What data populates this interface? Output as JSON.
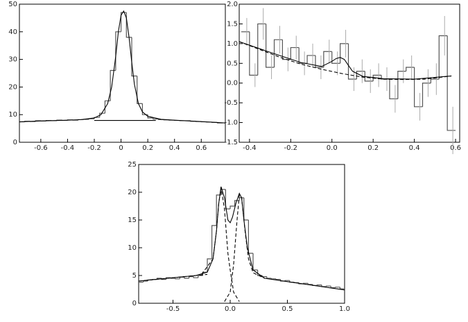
{
  "chart_data": [
    {
      "type": "histogram",
      "color": "#555555",
      "xlim": [
        -0.76,
        0.78
      ],
      "ylim": [
        0,
        50
      ],
      "xticks": [
        -0.6,
        -0.4,
        -0.2,
        0,
        0.2,
        0.4,
        0.6
      ],
      "yticks": [
        0,
        10,
        20,
        30,
        40,
        50
      ],
      "bins": [
        -0.76,
        -0.72,
        -0.68,
        -0.64,
        -0.6,
        -0.56,
        -0.52,
        -0.48,
        -0.44,
        -0.4,
        -0.36,
        -0.32,
        -0.28,
        -0.24,
        -0.2,
        -0.16,
        -0.12,
        -0.08,
        -0.04,
        0,
        0.04,
        0.08,
        0.12,
        0.16,
        0.2,
        0.24,
        0.28,
        0.32,
        0.36,
        0.4,
        0.44,
        0.48,
        0.52,
        0.56,
        0.6,
        0.64,
        0.68,
        0.72,
        0.76
      ],
      "values": [
        7.4,
        7.6,
        7.5,
        7.8,
        7.7,
        7.9,
        7.8,
        8.0,
        7.9,
        8.1,
        8.0,
        8.2,
        8.3,
        8.5,
        9.0,
        10.5,
        15,
        26,
        40,
        47,
        38,
        24,
        14,
        10,
        8.8,
        8.4,
        8.2,
        8.1,
        8.0,
        7.9,
        7.8,
        7.8,
        7.6,
        7.5,
        7.4,
        7.3,
        7.2,
        7.0
      ],
      "curves": [
        {
          "color": "#000000",
          "dash": false,
          "x": [
            -0.76,
            -0.6,
            -0.4,
            -0.3,
            -0.2,
            -0.15,
            -0.1,
            -0.07,
            -0.04,
            -0.02,
            0,
            0.02,
            0.04,
            0.06,
            0.08,
            0.1,
            0.13,
            0.16,
            0.2,
            0.3,
            0.4,
            0.6,
            0.78
          ],
          "y": [
            7.4,
            7.7,
            8.0,
            8.2,
            8.8,
            10,
            14,
            20,
            31,
            40,
            46,
            47.5,
            45,
            38,
            29,
            21,
            14,
            11,
            9.4,
            8.3,
            8.0,
            7.5,
            7.0
          ]
        },
        {
          "color": "#000000",
          "dash": false,
          "x": [
            -0.2,
            0.26
          ],
          "y": [
            7.9,
            7.9
          ]
        }
      ]
    },
    {
      "type": "histogram",
      "color": "#555555",
      "error_color": "#aaaaaa",
      "xlim": [
        -0.45,
        0.62
      ],
      "ylim": [
        -1.5,
        2
      ],
      "xticks": [
        -0.4,
        -0.2,
        {
          "value": 0,
          "label": "0.0"
        },
        0.2,
        0.4,
        0.6
      ],
      "yticks": [
        -1.5,
        {
          "value": -1,
          "label": "-1.0"
        },
        -0.5,
        {
          "value": 0,
          "label": "0.0"
        },
        0.5,
        {
          "value": 1,
          "label": "1.0"
        },
        1.5,
        {
          "value": 2,
          "label": "2.0"
        }
      ],
      "bins": [
        -0.44,
        -0.4,
        -0.36,
        -0.32,
        -0.28,
        -0.24,
        -0.2,
        -0.16,
        -0.12,
        -0.08,
        -0.04,
        0,
        0.04,
        0.08,
        0.12,
        0.16,
        0.2,
        0.24,
        0.28,
        0.32,
        0.36,
        0.4,
        0.44,
        0.48,
        0.52,
        0.56,
        0.6
      ],
      "values": [
        1.3,
        0.2,
        1.5,
        0.4,
        1.1,
        0.6,
        0.9,
        0.5,
        0.7,
        0.4,
        0.8,
        0.5,
        1.0,
        0.1,
        0.3,
        0.05,
        0.2,
        0.1,
        -0.4,
        0.3,
        0.4,
        -0.6,
        0.0,
        0.1,
        1.2,
        -1.2
      ],
      "errors": [
        0.35,
        0.3,
        0.4,
        0.3,
        0.35,
        0.3,
        0.3,
        0.3,
        0.3,
        0.3,
        0.3,
        0.3,
        0.35,
        0.3,
        0.3,
        0.3,
        0.3,
        0.3,
        0.35,
        0.3,
        0.3,
        0.35,
        0.35,
        0.4,
        0.5,
        0.6
      ],
      "curves": [
        {
          "color": "#000000",
          "dash": true,
          "x": [
            -0.45,
            -0.35,
            -0.25,
            -0.15,
            -0.05,
            0.05,
            0.15,
            0.25,
            0.35,
            0.45,
            0.58
          ],
          "y": [
            1.05,
            0.85,
            0.65,
            0.48,
            0.35,
            0.24,
            0.15,
            0.1,
            0.09,
            0.1,
            0.18
          ]
        },
        {
          "color": "#000000",
          "dash": false,
          "x": [
            -0.45,
            -0.3,
            -0.15,
            -0.05,
            0,
            0.02,
            0.04,
            0.06,
            0.08,
            0.1,
            0.15,
            0.25,
            0.4,
            0.58
          ],
          "y": [
            1.05,
            0.78,
            0.52,
            0.42,
            0.55,
            0.62,
            0.65,
            0.6,
            0.45,
            0.3,
            0.17,
            0.11,
            0.1,
            0.18
          ]
        }
      ]
    },
    {
      "type": "histogram",
      "color": "#555555",
      "xlim": [
        -0.8,
        1.0
      ],
      "ylim": [
        0,
        25
      ],
      "xticks": [
        -0.5,
        {
          "value": 0,
          "label": "0.0"
        },
        0.5,
        {
          "value": 1,
          "label": "1.0"
        }
      ],
      "yticks": [
        0,
        5,
        10,
        15,
        20,
        25
      ],
      "bins": [
        -0.8,
        -0.76,
        -0.72,
        -0.68,
        -0.64,
        -0.6,
        -0.56,
        -0.52,
        -0.48,
        -0.44,
        -0.4,
        -0.36,
        -0.32,
        -0.28,
        -0.24,
        -0.2,
        -0.16,
        -0.12,
        -0.08,
        -0.04,
        0,
        0.04,
        0.08,
        0.12,
        0.16,
        0.2,
        0.24,
        0.28,
        0.32,
        0.36,
        0.4,
        0.44,
        0.48,
        0.52,
        0.56,
        0.6,
        0.64,
        0.68,
        0.72,
        0.76,
        0.8,
        0.84,
        0.88,
        0.92,
        0.96,
        1.0
      ],
      "values": [
        3.8,
        4.0,
        4.2,
        4.3,
        4.5,
        4.3,
        4.6,
        4.5,
        4.4,
        4.7,
        4.5,
        4.8,
        4.6,
        5.0,
        5.6,
        8.0,
        14.0,
        19.5,
        20.5,
        17.0,
        17.5,
        18.5,
        19.0,
        15.0,
        9.0,
        6.0,
        5.0,
        4.8,
        4.5,
        4.4,
        4.3,
        4.0,
        4.1,
        3.8,
        3.7,
        3.5,
        3.6,
        3.4,
        3.2,
        3.3,
        3.0,
        3.1,
        2.8,
        2.9,
        2.6
      ],
      "curves": [
        {
          "color": "#000000",
          "dash": false,
          "x": [
            -0.8,
            -0.5,
            -0.3,
            -0.2,
            -0.15,
            -0.12,
            -0.1,
            -0.08,
            -0.05,
            -0.02,
            0,
            0.02,
            0.05,
            0.08,
            0.1,
            0.12,
            0.15,
            0.2,
            0.3,
            0.5,
            0.7,
            1.0
          ],
          "y": [
            4.0,
            4.6,
            5.0,
            5.6,
            8,
            13,
            18,
            21,
            19,
            15,
            14.5,
            15.5,
            18,
            19.8,
            19,
            15,
            10,
            6,
            4.5,
            3.9,
            3.3,
            2.4
          ]
        },
        {
          "color": "#000000",
          "dash": true,
          "x": [
            -0.25,
            -0.15,
            -0.12,
            -0.1,
            -0.08,
            -0.05,
            -0.02,
            0,
            0.03,
            0.08
          ],
          "y": [
            5.2,
            8,
            13,
            18,
            20.8,
            17,
            9,
            6,
            2,
            0.3
          ]
        },
        {
          "color": "#000000",
          "dash": true,
          "x": [
            -0.05,
            0,
            0.03,
            0.06,
            0.08,
            0.1,
            0.13,
            0.16,
            0.2,
            0.3
          ],
          "y": [
            0.3,
            2,
            7,
            15,
            19.5,
            19,
            13,
            8,
            5.5,
            4.5
          ]
        },
        {
          "color": "#000000",
          "dash": true,
          "x": [
            -0.8,
            -0.5,
            -0.2
          ],
          "y": [
            4.0,
            4.6,
            5.2
          ]
        }
      ]
    }
  ]
}
